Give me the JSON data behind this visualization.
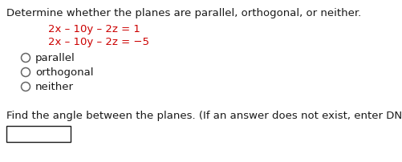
{
  "title": "Determine whether the planes are parallel, orthogonal, or neither.",
  "eq1": "2x – 10y – 2z = 1",
  "eq2": "2x – 10y – 2z = −5",
  "eq_color": "#cc0000",
  "option1": "parallel",
  "option2": "orthogonal",
  "option3": "neither",
  "footer": "Find the angle between the planes. (If an answer does not exist, enter DNE.)",
  "bg_color": "#ffffff",
  "text_color": "#1a1a1a",
  "circle_color": "#666666",
  "font_size": 9.5
}
